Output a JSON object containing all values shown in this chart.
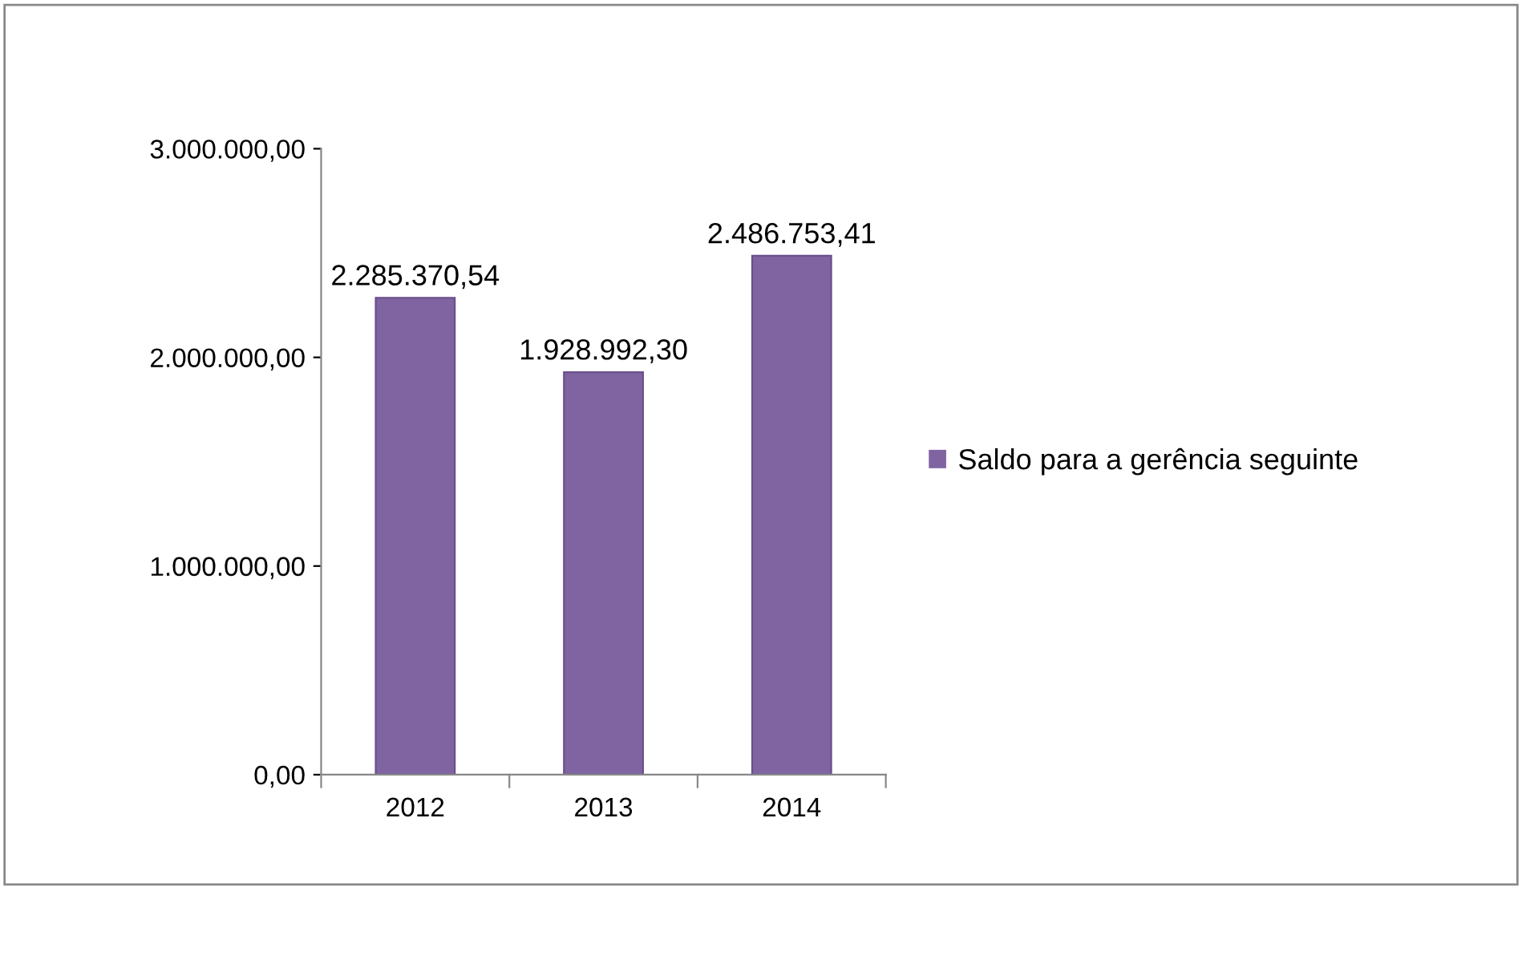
{
  "chart_data": {
    "type": "bar",
    "categories": [
      "2012",
      "2013",
      "2014"
    ],
    "series": [
      {
        "name": "Saldo para a gerência seguinte",
        "color": "#8064a2",
        "values": [
          2285370.54,
          1928992.3,
          2486753.41
        ],
        "value_labels": [
          "2.285.370,54",
          "1.928.992,30",
          "2.486.753,41"
        ]
      }
    ],
    "ylim": [
      0,
      3000000
    ],
    "yticks": [
      {
        "value": 0,
        "label": "0,00"
      },
      {
        "value": 1000000,
        "label": "1.000.000,00"
      },
      {
        "value": 2000000,
        "label": "2.000.000,00"
      },
      {
        "value": 3000000,
        "label": "3.000.000,00"
      }
    ],
    "grid": false,
    "legend": "right"
  }
}
